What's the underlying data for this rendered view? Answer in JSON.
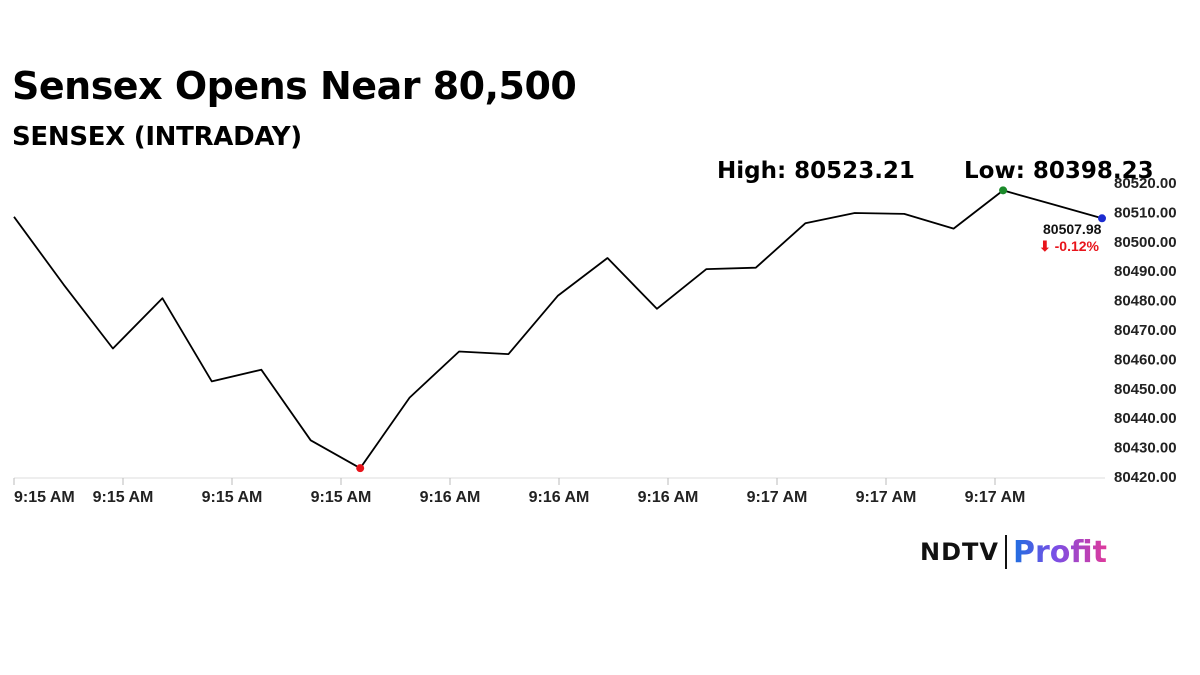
{
  "title": "Sensex Opens Near 80,500",
  "subtitle": "SENSEX (INTRADAY)",
  "high_label": "High: 80523.21",
  "low_label": "Low: 80398.23",
  "brand": {
    "ndtv": "NDTV",
    "profit": "Profit"
  },
  "chart_data": {
    "type": "line",
    "title": "Sensex Opens Near 80,500",
    "subtitle": "SENSEX (INTRADAY)",
    "y_ticks": [
      80420,
      80430,
      80440,
      80450,
      80460,
      80470,
      80480,
      80490,
      80500,
      80510,
      80520
    ],
    "y_tick_labels": [
      "80420.00",
      "80430.00",
      "80440.00",
      "80450.00",
      "80460.00",
      "80470.00",
      "80480.00",
      "80490.00",
      "80500.00",
      "80510.00",
      "80520.00"
    ],
    "ylim": [
      80420,
      80522
    ],
    "x_tick_labels": [
      "9:15 AM",
      "9:15 AM",
      "9:15 AM",
      "9:15 AM",
      "9:16 AM",
      "9:16 AM",
      "9:16 AM",
      "9:17 AM",
      "9:17 AM",
      "9:17 AM"
    ],
    "grid": false,
    "series": [
      {
        "values": [
          80508.5,
          80485.5,
          80463.7,
          80480.8,
          80452.5,
          80456.5,
          80432.5,
          80423.0,
          80447.0,
          80462.7,
          80461.8,
          80481.7,
          80494.5,
          80477.2,
          80490.7,
          80491.2,
          80506.3,
          80509.8,
          80509.5,
          80504.5,
          80517.5,
          80512.8,
          80508.0
        ],
        "color": "#000000"
      }
    ],
    "markers": [
      {
        "label": "low",
        "index": 7,
        "color": "#e8141b"
      },
      {
        "label": "high",
        "index": 20,
        "color": "#1b8a2a"
      },
      {
        "label": "last",
        "index": 22,
        "color": "#1c2bd0"
      }
    ],
    "last_value_label": "80507.98",
    "change_label": "⬇ -0.12%",
    "change_color": "#e8141b"
  }
}
